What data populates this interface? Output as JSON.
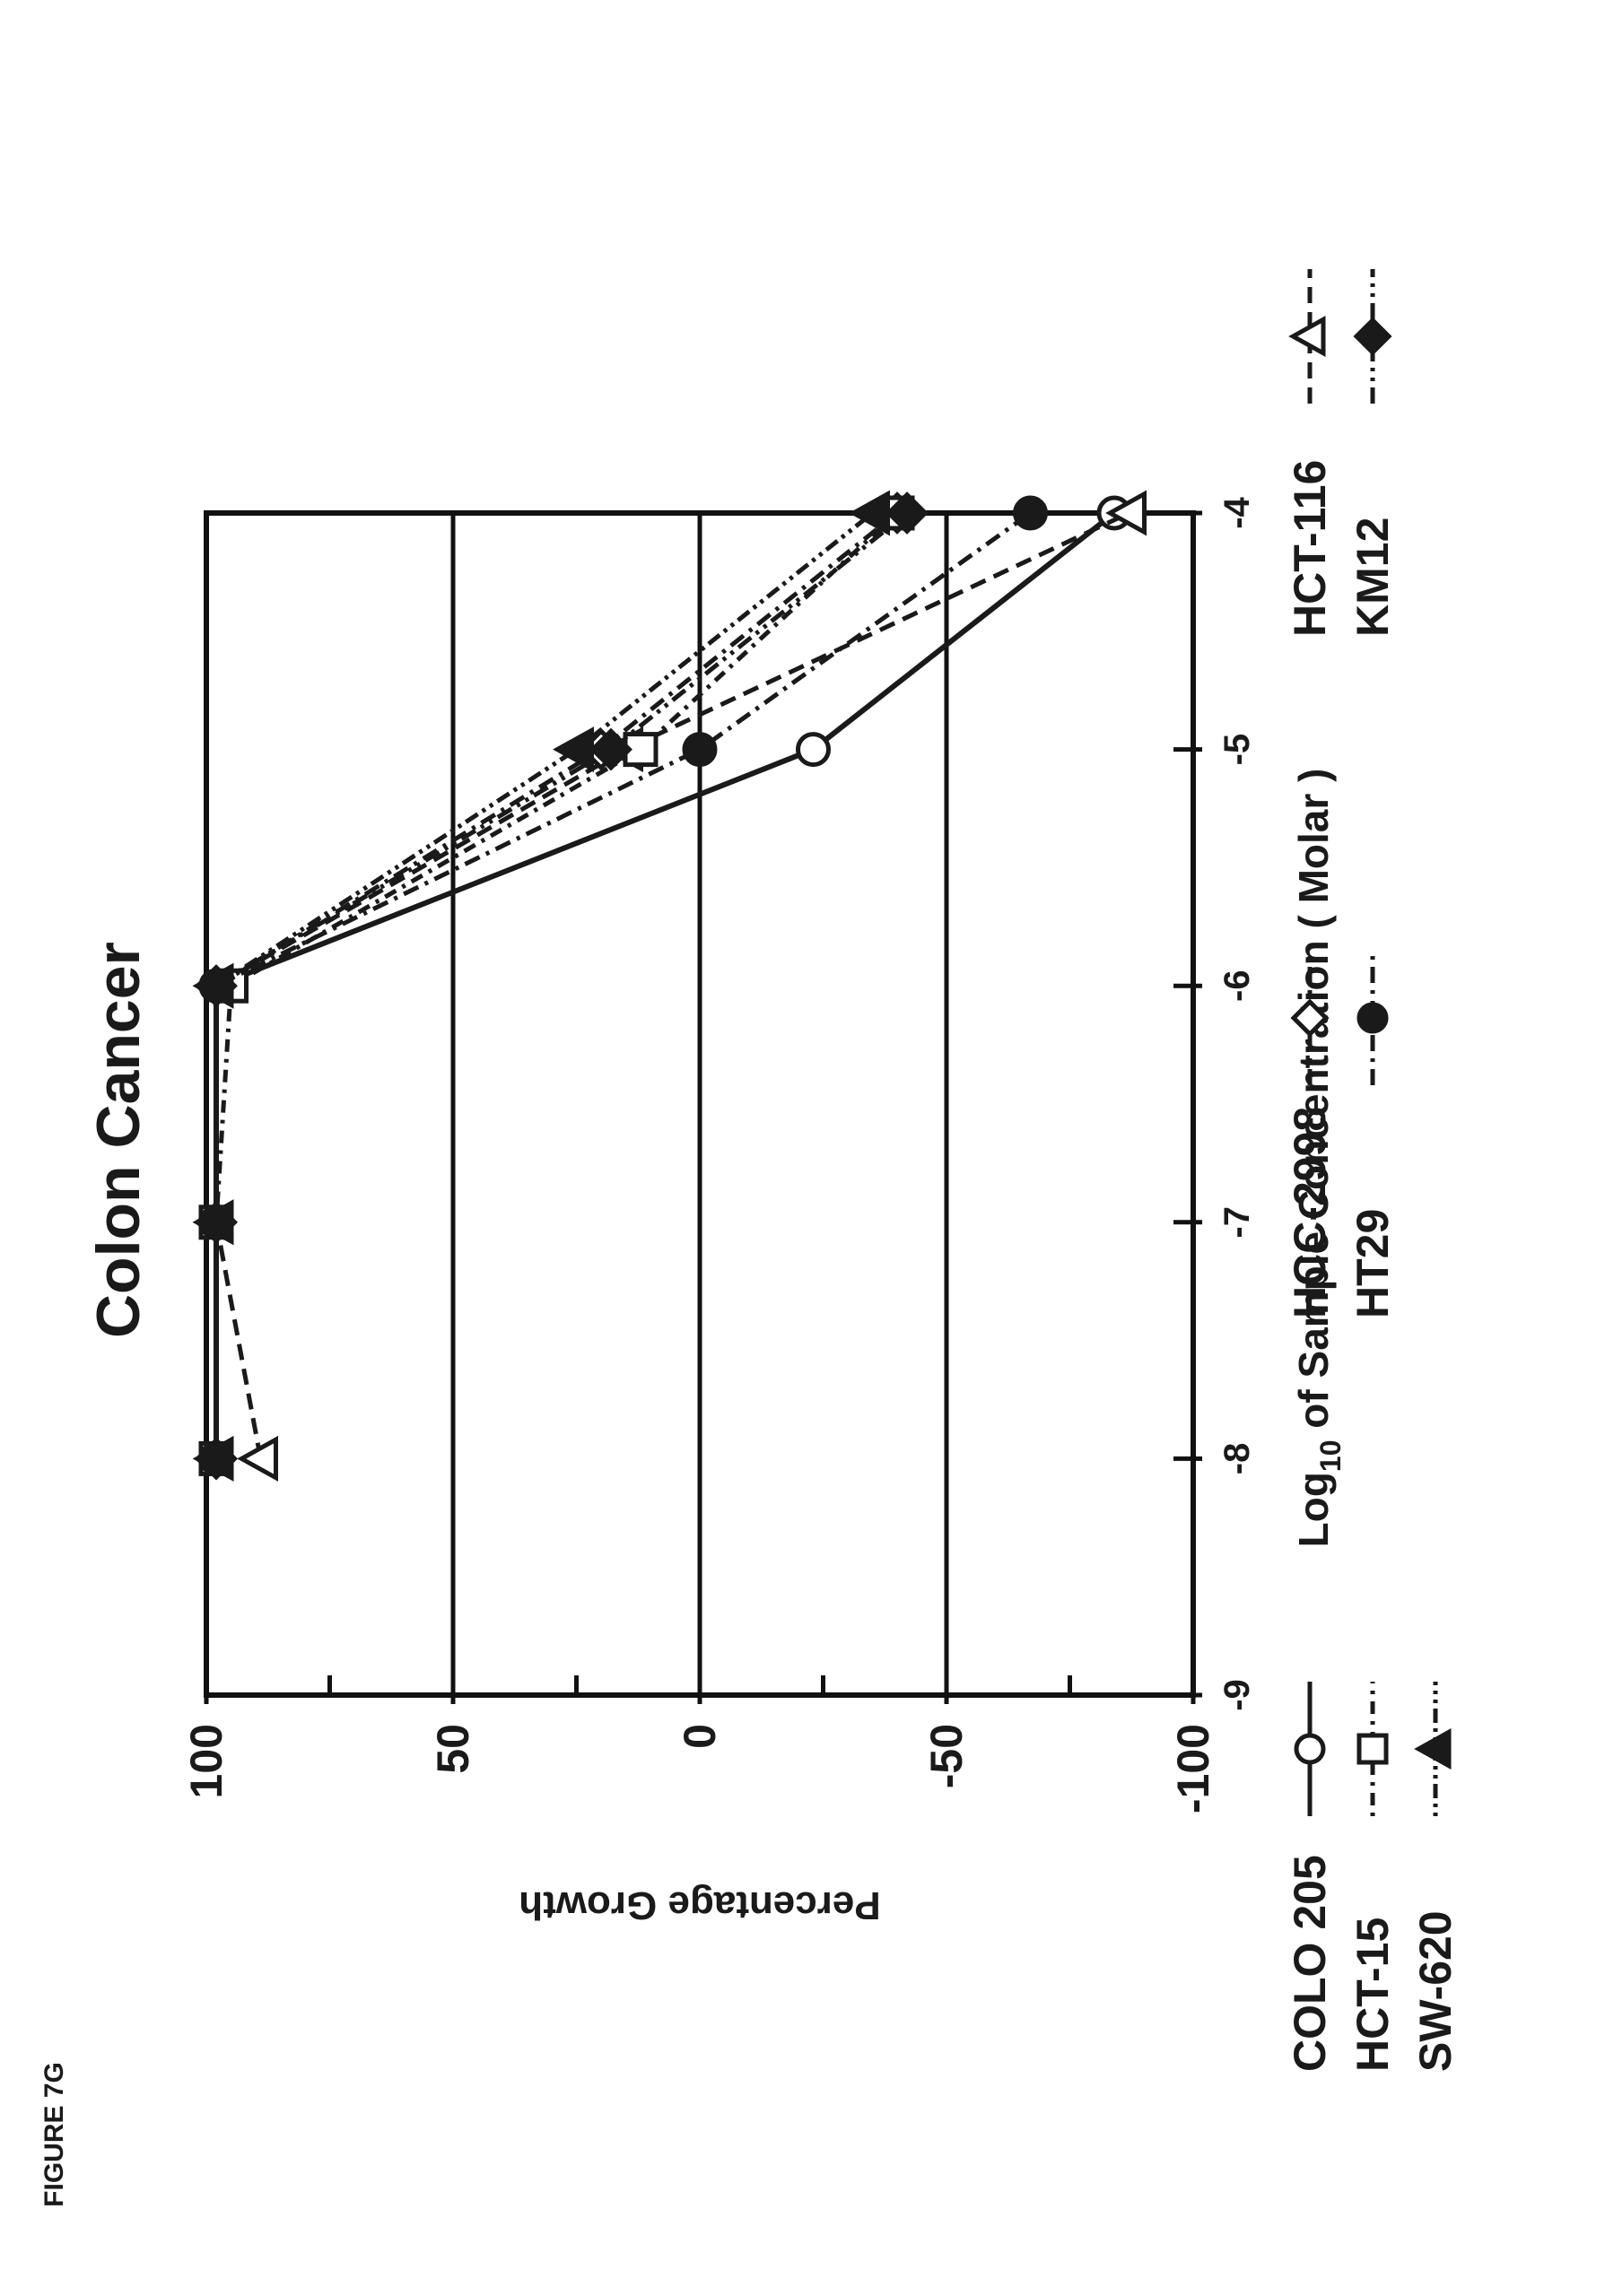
{
  "figure_label": "FIGURE 7G",
  "chart_data": {
    "type": "line",
    "title": "Colon Cancer",
    "xlabel_prefix": "Log",
    "xlabel_sub": "10",
    "xlabel_suffix": " of Sample Concentration ( Molar )",
    "ylabel": "Percentage Growth",
    "xlim": [
      -9,
      -4
    ],
    "ylim": [
      -100,
      100
    ],
    "x_ticks": [
      "-9",
      "-8",
      "-7",
      "-6",
      "-5",
      "-4"
    ],
    "y_ticks": [
      "100",
      "50",
      "0",
      "-50",
      "-100"
    ],
    "x_tick_values": [
      -9,
      -8,
      -7,
      -6,
      -5,
      -4
    ],
    "y_tick_values": [
      100,
      50,
      0,
      -50,
      -100
    ],
    "y_minor_ticks": [
      75,
      25,
      -25,
      -75
    ],
    "gridlines_y": [
      50,
      0,
      -50
    ],
    "x": [
      -8,
      -7,
      -6,
      -5,
      -4
    ],
    "series": [
      {
        "name": "COLO 205",
        "marker": "circle-open",
        "dash": "solid",
        "values": [
          98,
          98,
          98,
          -23,
          -84
        ]
      },
      {
        "name": "HCC-2998",
        "marker": "diamond-open",
        "dash": "dash-dot",
        "values": [
          98,
          98,
          98,
          20,
          -40
        ]
      },
      {
        "name": "HCT-116",
        "marker": "triangle-open",
        "dash": "dash",
        "values": [
          89,
          98,
          98,
          15,
          -87
        ]
      },
      {
        "name": "HCT-15",
        "marker": "square-open",
        "dash": "dot-dash",
        "values": [
          98,
          98,
          95,
          12,
          -40
        ]
      },
      {
        "name": "HT29",
        "marker": "circle-filled",
        "dash": "dash-dot",
        "values": [
          98,
          98,
          98,
          0,
          -67
        ]
      },
      {
        "name": "KM12",
        "marker": "diamond-filled",
        "dash": "dash-dot-dot",
        "values": [
          98,
          98,
          98,
          18,
          -42
        ]
      },
      {
        "name": "SW-620",
        "marker": "triangle-filled",
        "dash": "dot-dot-dash",
        "values": [
          98,
          98,
          98,
          25,
          -35
        ]
      }
    ],
    "legend_position": "bottom"
  }
}
